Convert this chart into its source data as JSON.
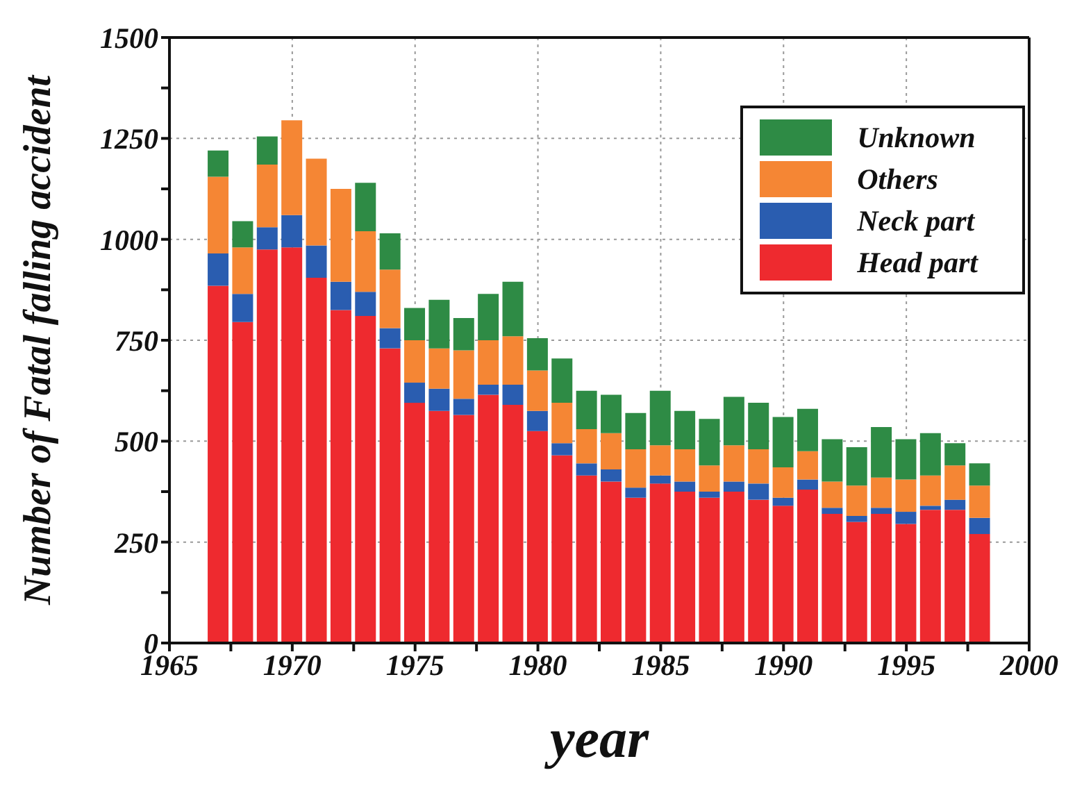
{
  "chart_data": {
    "type": "bar",
    "stacked": true,
    "xlabel": "year",
    "ylabel": "Number of Fatal falling accident",
    "x": [
      1967,
      1968,
      1969,
      1970,
      1971,
      1972,
      1973,
      1974,
      1975,
      1976,
      1977,
      1978,
      1979,
      1980,
      1981,
      1982,
      1983,
      1984,
      1985,
      1986,
      1987,
      1988,
      1989,
      1990,
      1991,
      1992,
      1993,
      1994,
      1995,
      1996,
      1997,
      1998
    ],
    "series": [
      {
        "name": "Head part",
        "color": "#ee2a2f",
        "values": [
          885,
          795,
          975,
          980,
          905,
          825,
          810,
          730,
          595,
          575,
          565,
          615,
          590,
          525,
          465,
          415,
          400,
          360,
          395,
          375,
          360,
          375,
          355,
          340,
          380,
          320,
          300,
          320,
          295,
          330,
          330,
          270
        ]
      },
      {
        "name": "Neck part",
        "color": "#2a5db0",
        "values": [
          80,
          70,
          55,
          80,
          80,
          70,
          60,
          50,
          50,
          55,
          40,
          25,
          50,
          50,
          30,
          30,
          30,
          25,
          20,
          25,
          15,
          25,
          40,
          20,
          25,
          15,
          15,
          15,
          30,
          10,
          25,
          40
        ]
      },
      {
        "name": "Others",
        "color": "#f58634",
        "values": [
          190,
          115,
          155,
          235,
          215,
          230,
          150,
          145,
          105,
          100,
          120,
          110,
          120,
          100,
          100,
          85,
          90,
          95,
          75,
          80,
          65,
          90,
          85,
          75,
          70,
          65,
          75,
          75,
          80,
          75,
          85,
          80
        ]
      },
      {
        "name": "Unknown",
        "color": "#2e8b45",
        "values": [
          65,
          65,
          70,
          0,
          0,
          0,
          120,
          90,
          80,
          120,
          80,
          115,
          135,
          80,
          110,
          95,
          95,
          90,
          135,
          95,
          115,
          120,
          115,
          125,
          105,
          105,
          95,
          125,
          100,
          105,
          55,
          55
        ]
      }
    ],
    "xlim": [
      1965,
      2000
    ],
    "xticks": [
      1965,
      {
        "value": 1967.5,
        "label": null
      },
      1970,
      {
        "value": 1972.5,
        "label": null
      },
      1975,
      {
        "value": 1977.5,
        "label": null
      },
      1980,
      {
        "value": 1982.5,
        "label": null
      },
      1985,
      {
        "value": 1987.5,
        "label": null
      },
      1990,
      {
        "value": 1992.5,
        "label": null
      },
      1995,
      {
        "value": 1997.5,
        "label": null
      },
      2000
    ],
    "ylim": [
      0,
      1500
    ],
    "yticks": [
      0,
      {
        "value": 125,
        "label": null
      },
      250,
      {
        "value": 375,
        "label": null
      },
      500,
      {
        "value": 625,
        "label": null
      },
      750,
      {
        "value": 875,
        "label": null
      },
      1000,
      {
        "value": 1125,
        "label": null
      },
      1250,
      {
        "value": 1375,
        "label": null
      },
      1500
    ],
    "grid": true,
    "legend": "top right"
  }
}
